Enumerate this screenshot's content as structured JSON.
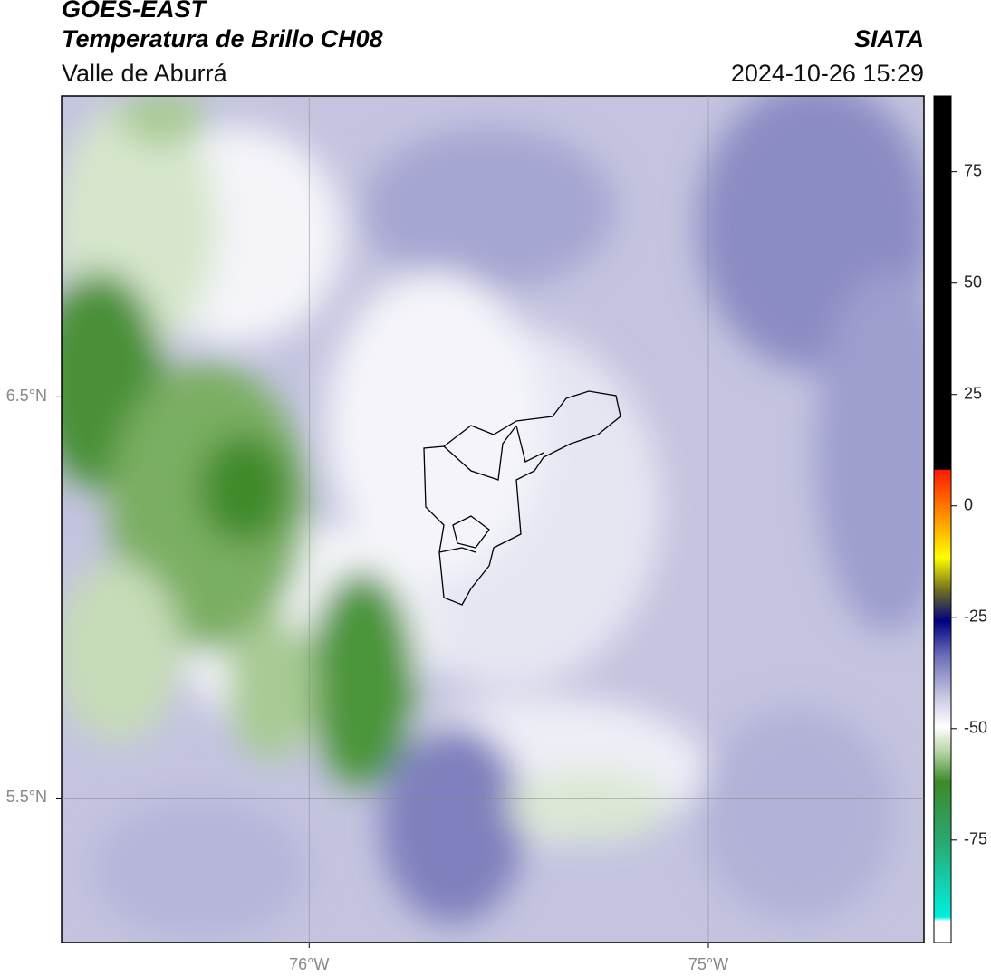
{
  "header": {
    "title": "GOES-EAST",
    "subtitle": "Temperatura de Brillo CH08",
    "region": "Valle de Aburrá",
    "source": "SIATA",
    "datetime": "2024-10-26 15:29"
  },
  "map": {
    "lonlim": [
      -76.62,
      -74.46
    ],
    "latlim": [
      5.14,
      7.25
    ],
    "lonticks": [
      {
        "value": -76,
        "label": "76°W"
      },
      {
        "value": -75,
        "label": "75°W"
      }
    ],
    "latticks": [
      {
        "value": 6.5,
        "label": "6.5°N"
      },
      {
        "value": 5.5,
        "label": "5.5°N"
      }
    ]
  },
  "colorbar": {
    "lim": [
      -98,
      92
    ],
    "ticks": [
      75,
      50,
      25,
      0,
      -25,
      -50,
      -75
    ]
  }
}
